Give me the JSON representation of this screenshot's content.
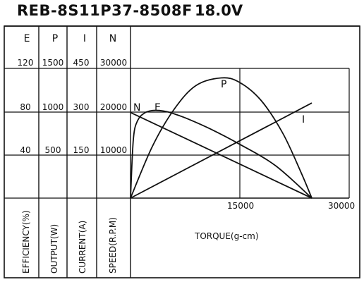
{
  "title": "REB-8S11P37-8508F",
  "voltage": "18.0V",
  "columns": [
    {
      "key": "E",
      "header": "E",
      "ticks": [
        "120",
        "80",
        "40"
      ],
      "axis_label": "EFFICIENCY(%)"
    },
    {
      "key": "P",
      "header": "P",
      "ticks": [
        "1500",
        "1000",
        "500"
      ],
      "axis_label": "OUTPUT(W)"
    },
    {
      "key": "I",
      "header": "I",
      "ticks": [
        "450",
        "300",
        "150"
      ],
      "axis_label": "CURRENT(A)"
    },
    {
      "key": "N",
      "header": "N",
      "ticks": [
        "30000",
        "20000",
        "10000"
      ],
      "axis_label": "SPEED(R.P.M)"
    }
  ],
  "chart_data": {
    "type": "line",
    "xlabel": "TORQUE(g-cm)",
    "xlim": [
      0,
      30000
    ],
    "x_ticks": [
      "15000",
      "30000"
    ],
    "ylim": [
      0,
      30000
    ],
    "y_ticks": [
      10000,
      20000,
      30000
    ],
    "series": [
      {
        "name": "N",
        "axis": "N",
        "x": [
          0,
          25000
        ],
        "values": [
          19800,
          0
        ]
      },
      {
        "name": "I",
        "axis": "I",
        "x": [
          0,
          25000
        ],
        "values": [
          0,
          330
        ]
      },
      {
        "name": "P",
        "axis": "P",
        "x": [
          0,
          3000,
          6000,
          9000,
          12500,
          15000,
          18000,
          21000,
          23500,
          25000
        ],
        "values": [
          0,
          595,
          1025,
          1300,
          1390,
          1340,
          1130,
          750,
          300,
          0
        ]
      },
      {
        "name": "E",
        "axis": "E",
        "x": [
          0,
          400,
          1000,
          2000,
          3000,
          4000,
          5000,
          6000,
          8000,
          11000,
          15000,
          20000,
          25000
        ],
        "values": [
          0,
          55,
          72,
          79,
          81,
          81,
          80,
          78,
          73,
          64,
          50,
          30,
          0
        ]
      }
    ],
    "grid": true
  }
}
